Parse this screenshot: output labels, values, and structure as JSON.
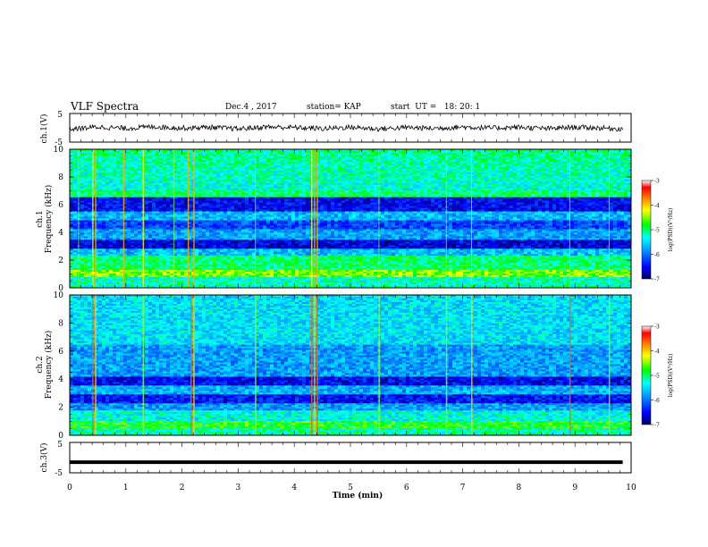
{
  "header": {
    "title": "VLF Spectra",
    "date": "Dec.4 , 2017",
    "station": "station= KAP",
    "start": "start  UT =   18: 20: 1"
  },
  "chart_data": [
    {
      "type": "line",
      "panel": "ch1-waveform",
      "ylabel": "ch.1(V)",
      "ylim": [
        -5,
        5
      ],
      "yticks": [
        5,
        -5
      ],
      "xlim": [
        0,
        10
      ],
      "description_series": "noisy oscillation around -0.3 V, amplitude approx 1.5 V",
      "x": [
        0,
        0.5,
        1,
        1.5,
        2,
        2.5,
        3,
        3.5,
        4,
        4.5,
        5,
        5.5,
        6,
        6.5,
        7,
        7.5,
        8,
        8.5,
        9,
        9.5,
        9.85
      ],
      "values": [
        -0.5,
        0.3,
        -0.2,
        0.4,
        -0.1,
        0.2,
        -0.4,
        0.3,
        0.1,
        -0.3,
        0.2,
        -0.4,
        0.1,
        -0.2,
        0.3,
        -0.1,
        0.2,
        -0.3,
        0.2,
        -0.1,
        -0.4
      ]
    },
    {
      "type": "heatmap",
      "panel": "ch1-spectrogram",
      "ylabel": "ch.1\nFrequency (kHz)",
      "ylim": [
        0,
        10
      ],
      "yticks": [
        0,
        2,
        4,
        6,
        8,
        10
      ],
      "xlim": [
        0,
        10
      ],
      "colorbar": {
        "label": "log(PSD)(V^2/Hz)",
        "range": [
          -7,
          -3
        ],
        "ticks": [
          -3,
          -4,
          -5,
          -6,
          -7
        ]
      }
    },
    {
      "type": "heatmap",
      "panel": "ch2-spectrogram",
      "ylabel": "ch.2\nFrequency (kHz)",
      "ylim": [
        0,
        10
      ],
      "yticks": [
        0,
        2,
        4,
        6,
        8,
        10
      ],
      "xlim": [
        0,
        10
      ],
      "colorbar": {
        "label": "log(PSD)(V^2/Hz)",
        "range": [
          -7,
          -3
        ],
        "ticks": [
          -3,
          -4,
          -5,
          -6,
          -7
        ]
      }
    },
    {
      "type": "line",
      "panel": "ch3-waveform",
      "ylabel": "ch.3(V)",
      "ylim": [
        -5,
        5
      ],
      "yticks": [
        5,
        -5
      ],
      "xlim": [
        0,
        10
      ],
      "x": [
        0,
        9.85
      ],
      "values": [
        -1.5,
        -1.5
      ]
    }
  ],
  "xaxis": {
    "label": "Time  (min)",
    "ticks": [
      "0",
      "1",
      "2",
      "3",
      "4",
      "5",
      "6",
      "7",
      "8",
      "9",
      "10"
    ]
  },
  "ch1_axis": {
    "label": "ch.1(V)",
    "ticks": [
      "5",
      "-5"
    ]
  },
  "spec1_axis": {
    "label_top": "ch.1",
    "label_bottom": "Frequency  (kHz)",
    "ticks": [
      "0",
      "2",
      "4",
      "6",
      "8",
      "10"
    ]
  },
  "spec2_axis": {
    "label_top": "ch.2",
    "label_bottom": "Frequency  (kHz)",
    "ticks": [
      "0",
      "2",
      "4",
      "6",
      "8",
      "10"
    ]
  },
  "ch3_axis": {
    "label": "ch.3(V)",
    "ticks": [
      "5",
      "-5"
    ]
  },
  "colorbar": {
    "label": "log(PSD)(V²/Hz)",
    "ticks": [
      "-3",
      "-4",
      "-5",
      "-6",
      "-7"
    ]
  }
}
